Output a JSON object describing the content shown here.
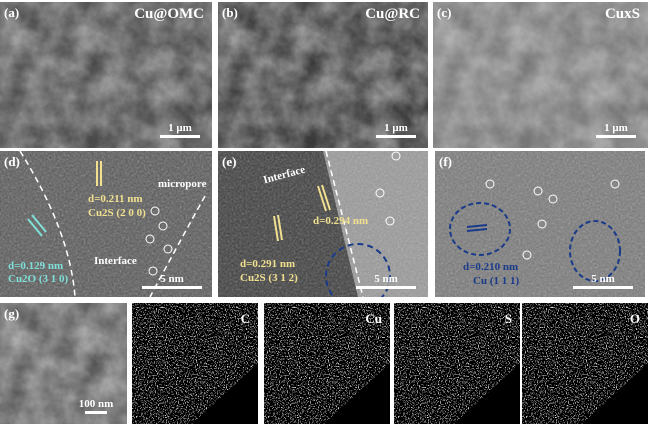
{
  "panels": {
    "a": {
      "label": "(a)",
      "title": "Cu@OMC",
      "scale": "1 μm"
    },
    "b": {
      "label": "(b)",
      "title": "Cu@RC",
      "scale": "1 μm"
    },
    "c": {
      "label": "(c)",
      "title": "CuxS",
      "scale": "1 μm"
    },
    "d": {
      "label": "(d)",
      "d1": "d=0.211 nm",
      "p1": "Cu2S (2 0 0)",
      "d2": "d=0.129 nm",
      "p2": "Cu2O (3 1 0)",
      "interface": "Interface",
      "micropore": "micropore",
      "scale": "5 nm"
    },
    "e": {
      "label": "(e)",
      "interface": "Interface",
      "d1": "d=0.294 nm",
      "d2": "d=0.291 nm",
      "p2": "Cu2S (3 1 2)",
      "scale": "5 nm"
    },
    "f": {
      "label": "(f)",
      "d1": "d=0.210 nm",
      "p1": "Cu (1 1 1)",
      "scale": "5 nm"
    },
    "g": {
      "label": "(g)",
      "scale": "100 nm"
    },
    "maps": [
      {
        "element": "C",
        "color": "#d0101a"
      },
      {
        "element": "Cu",
        "color": "#e020e0"
      },
      {
        "element": "S",
        "color": "#e0e020"
      },
      {
        "element": "O",
        "color": "#20d0d0"
      }
    ]
  },
  "colors": {
    "cu2s": "#f0e090",
    "cu2o": "#7fe0d8",
    "cu": "#1a3a8a"
  }
}
